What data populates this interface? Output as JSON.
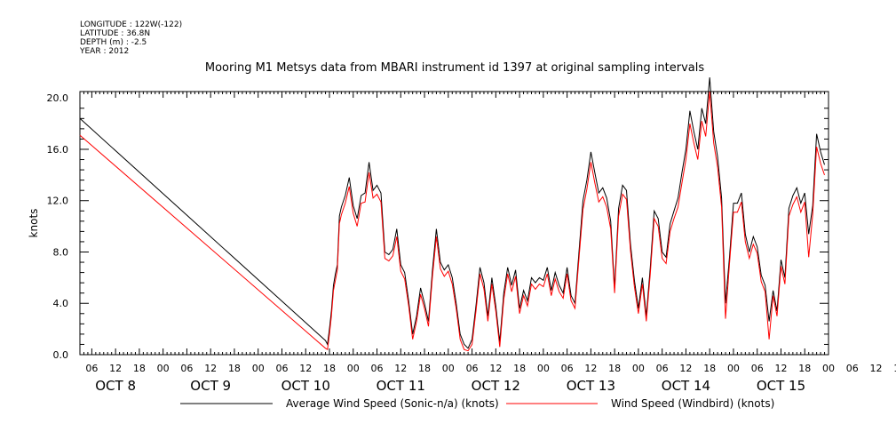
{
  "header": {
    "longitude": "LONGITUDE : 122W(-122)",
    "latitude": "LATITUDE : 36.8N",
    "depth": "DEPTH (m) : -2.5",
    "year": "YEAR : 2012"
  },
  "chart_data": {
    "type": "line",
    "title": "Mooring M1 Metsys data from MBARI instrument id 1397 at original sampling intervals",
    "xlabel": "",
    "ylabel": "knots",
    "xlim": [
      3,
      192
    ],
    "ylim": [
      0,
      20.5
    ],
    "x_unit": "hours since Oct 8 00:00",
    "y_ticks": [
      "0.0",
      "4.0",
      "8.0",
      "12.0",
      "16.0",
      "20.0"
    ],
    "hour_ticks": [
      "06",
      "12",
      "18",
      "00",
      "06",
      "12",
      "18",
      "00",
      "06",
      "12",
      "18",
      "00",
      "06",
      "12",
      "18",
      "00",
      "06",
      "12",
      "18",
      "00",
      "06",
      "12",
      "18",
      "00",
      "06",
      "12",
      "18",
      "00",
      "06",
      "12",
      "18",
      "00",
      "06",
      "12",
      "18"
    ],
    "day_labels": [
      "OCT  8",
      "OCT  9",
      "OCT 10",
      "OCT 11",
      "OCT 12",
      "OCT 13",
      "OCT 14",
      "OCT 15"
    ],
    "grid": false,
    "legend_position": "bottom",
    "series": [
      {
        "name": "Average Wind Speed (Sonic-n/a) (knots)",
        "color": "#000000",
        "x": [
          3,
          65,
          65.5,
          66,
          66.5,
          67,
          67.5,
          68,
          68.5,
          69,
          70,
          71,
          72,
          73,
          74,
          75,
          76,
          77,
          78,
          79,
          80,
          81,
          82,
          83,
          84,
          85,
          86,
          87,
          88,
          89,
          90,
          91,
          92,
          93,
          94,
          95,
          96,
          97,
          98,
          99,
          100,
          101,
          102,
          103,
          104,
          105,
          106,
          107,
          108,
          109,
          110,
          111,
          112,
          113,
          114,
          115,
          116,
          117,
          118,
          119,
          120,
          121,
          122,
          123,
          124,
          125,
          126,
          127,
          128,
          129,
          130,
          131,
          132,
          133,
          134,
          135,
          136,
          137,
          138,
          139,
          140,
          141,
          142,
          143,
          144,
          145,
          146,
          147,
          148,
          149,
          150,
          151,
          152,
          153,
          154,
          155,
          156,
          157,
          158,
          159,
          160,
          161,
          162,
          163,
          164,
          165,
          166,
          167,
          168,
          169,
          170,
          171,
          172,
          173,
          174,
          175,
          176,
          177,
          178,
          179,
          180,
          181,
          182,
          183,
          184,
          185,
          186,
          187,
          188,
          189,
          190,
          191
        ],
        "y": [
          18.4,
          1.1,
          0.8,
          2.0,
          3.4,
          5.4,
          6.3,
          7.0,
          10.8,
          11.5,
          12.4,
          13.8,
          11.6,
          10.6,
          12.4,
          12.6,
          15.0,
          12.8,
          13.2,
          12.6,
          8.0,
          7.8,
          8.2,
          9.8,
          7.0,
          6.4,
          4.2,
          1.6,
          3.0,
          5.2,
          4.0,
          2.6,
          6.6,
          9.8,
          7.2,
          6.6,
          7.0,
          6.0,
          4.0,
          1.6,
          0.8,
          0.5,
          1.2,
          3.8,
          6.8,
          5.6,
          3.0,
          6.0,
          3.8,
          1.0,
          4.8,
          6.8,
          5.4,
          6.6,
          3.6,
          5.0,
          4.2,
          6.0,
          5.6,
          6.0,
          5.8,
          6.8,
          5.0,
          6.4,
          5.4,
          4.8,
          6.8,
          4.6,
          4.0,
          8.0,
          12.0,
          13.6,
          15.8,
          14.2,
          12.6,
          13.0,
          12.2,
          10.4,
          5.2,
          11.4,
          13.2,
          12.8,
          8.6,
          5.8,
          3.6,
          6.0,
          3.0,
          6.8,
          11.2,
          10.6,
          8.0,
          7.6,
          10.2,
          11.2,
          12.2,
          14.2,
          16.0,
          19.0,
          17.4,
          16.0,
          19.2,
          18.0,
          21.6,
          17.4,
          15.4,
          12.2,
          4.0,
          7.6,
          11.8,
          11.8,
          12.6,
          9.4,
          8.0,
          9.2,
          8.4,
          6.2,
          5.4,
          2.6,
          5.0,
          3.4,
          7.4,
          6.0,
          11.4,
          12.4,
          13.0,
          11.8,
          12.6,
          9.4,
          11.6,
          17.2,
          15.8,
          14.8
        ]
      },
      {
        "name": "Wind Speed (Windbird) (knots)",
        "color": "#ff0000",
        "x": [
          3,
          65,
          65.5,
          66,
          66.5,
          67,
          67.5,
          68,
          68.5,
          69,
          70,
          71,
          72,
          73,
          74,
          75,
          76,
          77,
          78,
          79,
          80,
          81,
          82,
          83,
          84,
          85,
          86,
          87,
          88,
          89,
          90,
          91,
          92,
          93,
          94,
          95,
          96,
          97,
          98,
          99,
          100,
          101,
          102,
          103,
          104,
          105,
          106,
          107,
          108,
          109,
          110,
          111,
          112,
          113,
          114,
          115,
          116,
          117,
          118,
          119,
          120,
          121,
          122,
          123,
          124,
          125,
          126,
          127,
          128,
          129,
          130,
          131,
          132,
          133,
          134,
          135,
          136,
          137,
          138,
          139,
          140,
          141,
          142,
          143,
          144,
          145,
          146,
          147,
          148,
          149,
          150,
          151,
          152,
          153,
          154,
          155,
          156,
          157,
          158,
          159,
          160,
          161,
          162,
          163,
          164,
          165,
          166,
          167,
          168,
          169,
          170,
          171,
          172,
          173,
          174,
          175,
          176,
          177,
          178,
          179,
          180,
          181,
          182,
          183,
          184,
          185,
          186,
          187,
          188,
          189,
          190,
          191
        ],
        "y": [
          17.1,
          0.5,
          0.4,
          1.6,
          3.0,
          5.0,
          5.8,
          6.6,
          10.2,
          10.9,
          11.8,
          13.1,
          11.0,
          10.0,
          11.8,
          11.9,
          14.2,
          12.2,
          12.5,
          11.9,
          7.5,
          7.3,
          7.7,
          9.2,
          6.5,
          5.9,
          3.8,
          1.2,
          2.6,
          4.7,
          3.6,
          2.2,
          6.1,
          9.2,
          6.7,
          6.1,
          6.5,
          5.5,
          3.6,
          1.2,
          0.4,
          0.3,
          0.8,
          3.4,
          6.3,
          5.1,
          2.6,
          5.5,
          3.4,
          0.6,
          4.3,
          6.3,
          4.9,
          6.1,
          3.2,
          4.6,
          3.8,
          5.5,
          5.1,
          5.5,
          5.3,
          6.3,
          4.6,
          5.9,
          4.9,
          4.4,
          6.3,
          4.2,
          3.6,
          7.5,
          11.3,
          12.9,
          15.0,
          13.4,
          11.9,
          12.3,
          11.5,
          9.8,
          4.8,
          10.8,
          12.5,
          12.1,
          8.1,
          5.3,
          3.2,
          5.5,
          2.6,
          6.3,
          10.6,
          10.0,
          7.5,
          7.1,
          9.6,
          10.6,
          11.5,
          13.4,
          15.2,
          18.0,
          16.5,
          15.2,
          18.2,
          17.0,
          20.5,
          16.5,
          14.6,
          11.5,
          2.8,
          7.1,
          11.1,
          11.1,
          11.9,
          8.8,
          7.5,
          8.6,
          7.9,
          5.7,
          4.9,
          1.2,
          4.6,
          3.0,
          6.9,
          5.5,
          10.8,
          11.7,
          12.3,
          11.1,
          11.9,
          7.6,
          10.9,
          16.2,
          14.9,
          14.0
        ]
      }
    ]
  }
}
